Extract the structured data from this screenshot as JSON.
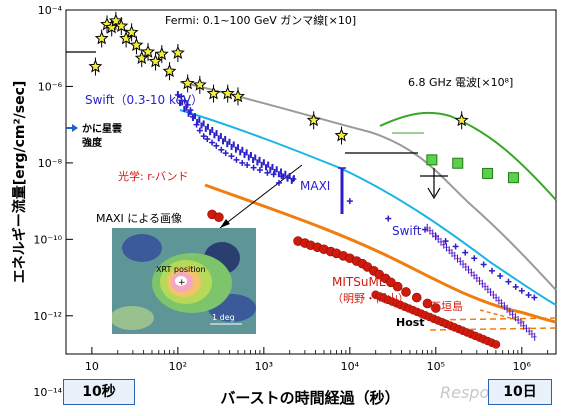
{
  "chart_data": {
    "type": "scatter",
    "title": "",
    "xlabel": "バーストの時間経過（秒）",
    "ylabel": "エネルギー流量[erg/cm²/sec]",
    "xscale": "log",
    "yscale": "log",
    "xlim": [
      5,
      2500000
    ],
    "ylim": [
      1e-13,
      0.0001
    ],
    "x_tick_labels": [
      "10",
      "10²",
      "10³",
      "10⁴",
      "10⁵",
      "10⁶"
    ],
    "y_tick_labels": [
      "10⁻⁴",
      "10⁻⁶",
      "10⁻⁸",
      "10⁻¹⁰",
      "10⁻¹²",
      "10⁻¹⁴"
    ],
    "series": [
      {
        "name": "Fermi: 0.1~100 GeV ガンマ線[×10]",
        "color": "#000000",
        "marker": "star",
        "x": [
          11,
          13,
          15,
          17,
          19,
          22,
          25,
          29,
          33,
          38,
          45,
          55,
          65,
          80,
          100,
          130,
          180,
          260,
          380,
          500,
          3800,
          8000,
          200000
        ],
        "y": [
          3.3e-06,
          1.8e-05,
          4.2e-05,
          3.5e-05,
          5.2e-05,
          3.8e-05,
          1.8e-05,
          2.6e-05,
          1.2e-05,
          5.5e-06,
          8e-06,
          4.5e-06,
          7e-06,
          2.5e-06,
          7.5e-06,
          1.2e-06,
          1.1e-06,
          6.5e-07,
          6.5e-07,
          5.5e-07,
          1.3e-07,
          5.2e-08,
          1.3e-07
        ]
      },
      {
        "name": "6.8 GHz 電波[×10⁸]",
        "color": "#3aa629",
        "marker": "square",
        "x": [
          90000,
          180000,
          400000,
          800000
        ],
        "y": [
          1.2e-08,
          9.8e-09,
          5.3e-09,
          4.1e-09
        ]
      },
      {
        "name": "Swift（0.3-10 keV）",
        "color": "#2a1fc8",
        "marker": "cross",
        "x": [
          100,
          110,
          120,
          130,
          140,
          150,
          165,
          180,
          200,
          220,
          250,
          280,
          320,
          360,
          420,
          480,
          560,
          640,
          760,
          900,
          1100,
          1300,
          1600,
          1900,
          2200
        ],
        "y": [
          6e-07,
          5.5e-07,
          4.2e-07,
          3.3e-07,
          2.4e-07,
          1.6e-07,
          1e-07,
          7e-08,
          5e-08,
          4.2e-08,
          3.4e-08,
          2.8e-08,
          2.2e-08,
          1.8e-08,
          1.5e-08,
          1.2e-08,
          1e-08,
          8.8e-09,
          7.5e-09,
          6.5e-09,
          5.5e-09,
          5e-09,
          4.5e-09,
          4.1e-09,
          3.8e-09
        ]
      },
      {
        "name": "Swift",
        "color": "#2a1fc8",
        "marker": "cross",
        "x": [
          75000,
          100000,
          130000,
          170000,
          220000,
          280000,
          360000,
          450000,
          560000,
          700000,
          850000,
          1000000,
          1200000,
          1400000
        ],
        "y": [
          1.8e-10,
          1.2e-10,
          9e-11,
          6.5e-11,
          4.5e-11,
          3.2e-11,
          2.2e-11,
          1.5e-11,
          1.1e-11,
          7.8e-12,
          5.7e-12,
          4.5e-12,
          3.5e-12,
          3e-12
        ]
      },
      {
        "name": "MAXI",
        "color": "#2a1fc8",
        "marker": "cross",
        "x": [
          1500,
          10000,
          28000
        ],
        "y": [
          3e-09,
          1e-09,
          3.5e-10
        ]
      },
      {
        "name": "光学: r-バンド",
        "color": "#d11a0e",
        "marker": "circle",
        "x": [
          250,
          300,
          2500,
          3000,
          3500,
          4200,
          5000,
          6000,
          7000,
          8400,
          10000,
          12000,
          14000,
          16000,
          19000,
          22000,
          26000,
          30000,
          36000,
          45000,
          60000,
          80000,
          100000
        ],
        "y": [
          4.5e-10,
          3.8e-10,
          9e-11,
          8e-11,
          7e-11,
          6.2e-11,
          5.5e-11,
          4.8e-11,
          4.3e-11,
          3.7e-11,
          3.2e-11,
          2.7e-11,
          2.3e-11,
          1.9e-11,
          1.5e-11,
          1.2e-11,
          9.5e-12,
          7.5e-12,
          5.8e-12,
          4.2e-12,
          3e-12,
          2.1e-12,
          1.6e-12
        ]
      }
    ],
    "annotations": [
      {
        "text": "Fermi: 0.1~100 GeV ガンマ線[×10]"
      },
      {
        "text": "6.8 GHz 電波[×10⁸]"
      },
      {
        "text": "Swift（0.3-10 keV）"
      },
      {
        "text": "かに星雲"
      },
      {
        "text": "強度"
      },
      {
        "text": "光学: r-バンド"
      },
      {
        "text": "MAXI"
      },
      {
        "text": "Swift"
      },
      {
        "text": "MITSuME"
      },
      {
        "text": "（明野・岡山）"
      },
      {
        "text": "石垣島"
      },
      {
        "text": "Host"
      },
      {
        "text": "MAXI による画像"
      },
      {
        "text": "XRT position"
      },
      {
        "text": "1 deg"
      }
    ],
    "grid": false,
    "legend": "none"
  },
  "ui": {
    "left_box_label": "10秒",
    "right_box_label": "10日",
    "watermark": "Response."
  },
  "colors": {
    "fermi": "#000000",
    "radio": "#3aa629",
    "swift": "#2a1fc8",
    "optical": "#d11a0e",
    "optical_fit": "#f07d0f",
    "host": "#f07d0f",
    "model_gray": "#9a9a9a",
    "model_cyan": "#1ab4e6",
    "box_border": "#2a62b8"
  }
}
